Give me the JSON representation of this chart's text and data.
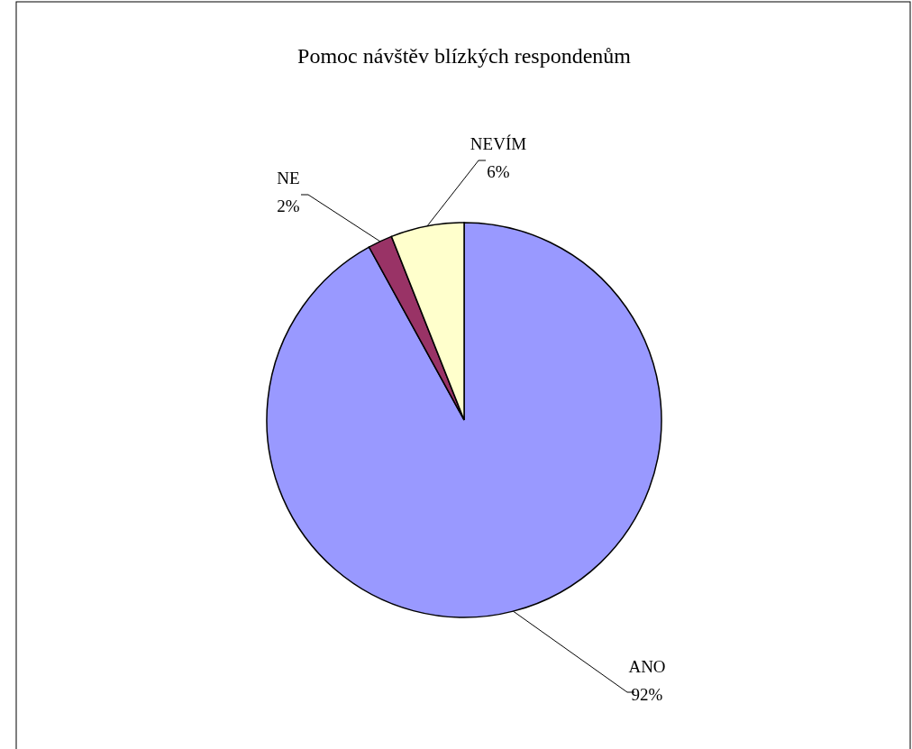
{
  "chart_data": {
    "type": "pie",
    "title": "Pomoc návštěv blízkých respondenům",
    "categories": [
      "ANO",
      "NE",
      "NEVÍM"
    ],
    "values": [
      92,
      2,
      6
    ],
    "value_labels": [
      "92%",
      "2%",
      "6%"
    ],
    "colors": [
      "#9999ff",
      "#993366",
      "#ffffcc"
    ]
  }
}
